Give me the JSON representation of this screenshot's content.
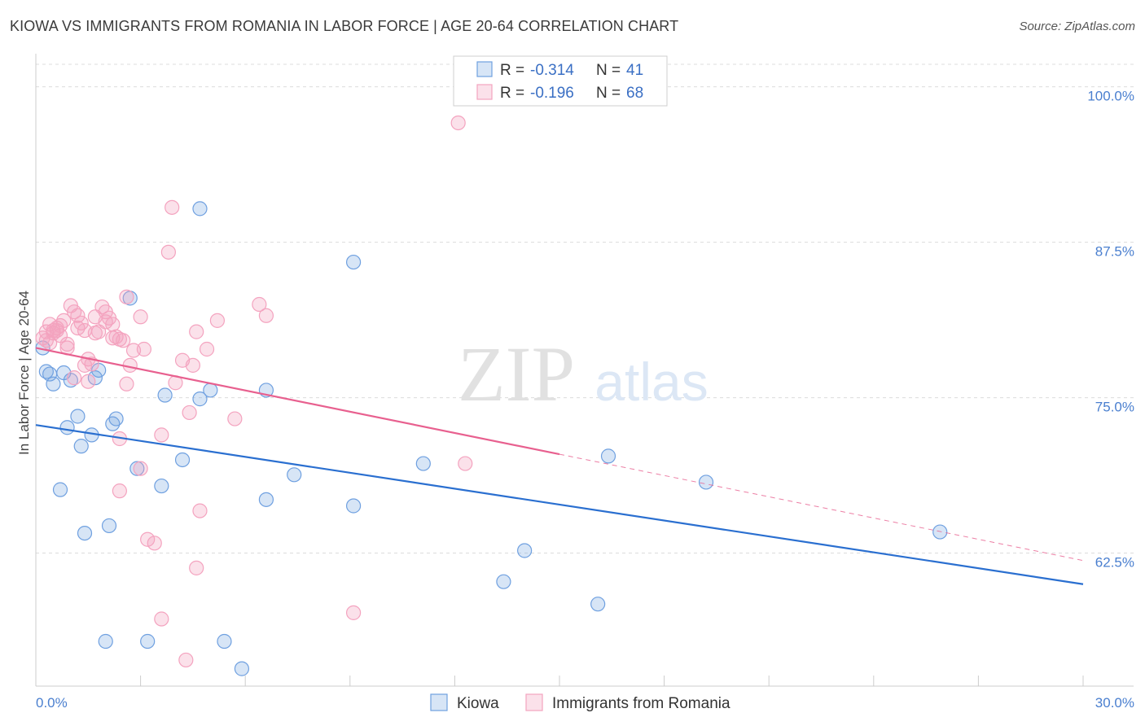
{
  "title": "KIOWA VS IMMIGRANTS FROM ROMANIA IN LABOR FORCE | AGE 20-64 CORRELATION CHART",
  "source": "Source: ZipAtlas.com",
  "watermark": {
    "zip": "ZIP",
    "atlas": "atlas"
  },
  "chart_data": {
    "type": "scatter",
    "title": "KIOWA VS IMMIGRANTS FROM ROMANIA IN LABOR FORCE | AGE 20-64 CORRELATION CHART",
    "xlabel": "",
    "ylabel": "In Labor Force | Age 20-64",
    "xlim": [
      0,
      30
    ],
    "ylim": [
      51.8,
      102.4
    ],
    "x_tick_labels": [
      "0.0%",
      "30.0%"
    ],
    "y_ticks": [
      62.5,
      75.0,
      87.5,
      100.0
    ],
    "y_tick_labels": [
      "62.5%",
      "75.0%",
      "87.5%",
      "100.0%"
    ],
    "grid": true,
    "legend_placement": "top-center",
    "series": [
      {
        "name": "Kiowa",
        "color": "#6fa0e0",
        "line_color": "#2a6fd0",
        "R": "-0.314",
        "N": "41",
        "trend": {
          "x0": 0.0,
          "y0": 72.8,
          "x1": 30.0,
          "y1": 60.0,
          "dashed_from": null
        },
        "points": [
          [
            0.2,
            79.0
          ],
          [
            0.3,
            77.1
          ],
          [
            0.4,
            76.9
          ],
          [
            0.5,
            76.1
          ],
          [
            0.7,
            67.6
          ],
          [
            0.8,
            77.0
          ],
          [
            0.9,
            72.6
          ],
          [
            1.0,
            76.4
          ],
          [
            1.2,
            73.5
          ],
          [
            1.3,
            71.1
          ],
          [
            1.4,
            64.1
          ],
          [
            1.6,
            72.0
          ],
          [
            1.7,
            76.6
          ],
          [
            1.8,
            77.2
          ],
          [
            2.0,
            55.4
          ],
          [
            2.1,
            64.7
          ],
          [
            2.2,
            72.9
          ],
          [
            2.3,
            73.3
          ],
          [
            2.7,
            83.0
          ],
          [
            2.9,
            69.3
          ],
          [
            3.2,
            55.4
          ],
          [
            3.6,
            67.9
          ],
          [
            3.7,
            75.2
          ],
          [
            4.2,
            70.0
          ],
          [
            4.7,
            74.9
          ],
          [
            4.7,
            90.2
          ],
          [
            5.0,
            75.6
          ],
          [
            5.4,
            55.4
          ],
          [
            5.9,
            53.2
          ],
          [
            6.6,
            75.6
          ],
          [
            6.6,
            66.8
          ],
          [
            7.4,
            68.8
          ],
          [
            9.1,
            66.3
          ],
          [
            9.1,
            85.9
          ],
          [
            11.1,
            69.7
          ],
          [
            13.4,
            60.2
          ],
          [
            14.0,
            62.7
          ],
          [
            16.1,
            58.4
          ],
          [
            16.4,
            70.3
          ],
          [
            19.2,
            68.2
          ],
          [
            25.9,
            64.2
          ]
        ]
      },
      {
        "name": "Immigrants from Romania",
        "color": "#f4a3bf",
        "line_color": "#e8608f",
        "R": "-0.196",
        "N": "68",
        "trend": {
          "x0": 0.0,
          "y0": 79.0,
          "x1": 30.0,
          "y1": 61.9,
          "dashed_from": 15.0
        },
        "points": [
          [
            0.2,
            79.8
          ],
          [
            0.3,
            80.3
          ],
          [
            0.3,
            79.6
          ],
          [
            0.4,
            80.9
          ],
          [
            0.5,
            80.4
          ],
          [
            0.5,
            80.2
          ],
          [
            0.6,
            80.6
          ],
          [
            0.6,
            80.4
          ],
          [
            0.7,
            80.0
          ],
          [
            0.7,
            80.8
          ],
          [
            0.8,
            81.2
          ],
          [
            0.9,
            79.3
          ],
          [
            0.9,
            79.0
          ],
          [
            1.0,
            82.4
          ],
          [
            1.1,
            81.9
          ],
          [
            1.1,
            76.6
          ],
          [
            1.2,
            80.6
          ],
          [
            1.2,
            81.6
          ],
          [
            1.3,
            81.0
          ],
          [
            1.4,
            77.6
          ],
          [
            1.4,
            80.4
          ],
          [
            1.5,
            76.3
          ],
          [
            1.5,
            78.1
          ],
          [
            1.6,
            77.7
          ],
          [
            1.7,
            80.2
          ],
          [
            1.7,
            81.5
          ],
          [
            1.8,
            80.3
          ],
          [
            1.9,
            82.3
          ],
          [
            2.0,
            81.1
          ],
          [
            2.0,
            81.9
          ],
          [
            2.1,
            81.4
          ],
          [
            2.2,
            80.9
          ],
          [
            2.2,
            79.8
          ],
          [
            2.3,
            79.9
          ],
          [
            2.4,
            79.7
          ],
          [
            2.4,
            71.7
          ],
          [
            2.4,
            67.5
          ],
          [
            2.5,
            79.6
          ],
          [
            2.6,
            76.1
          ],
          [
            2.6,
            83.1
          ],
          [
            2.7,
            77.6
          ],
          [
            2.8,
            78.8
          ],
          [
            3.0,
            69.3
          ],
          [
            3.0,
            81.5
          ],
          [
            3.1,
            78.9
          ],
          [
            3.2,
            63.6
          ],
          [
            3.4,
            63.3
          ],
          [
            3.6,
            57.2
          ],
          [
            3.6,
            72.0
          ],
          [
            3.8,
            86.7
          ],
          [
            3.9,
            90.3
          ],
          [
            4.0,
            76.2
          ],
          [
            4.2,
            78.0
          ],
          [
            4.3,
            53.9
          ],
          [
            4.4,
            73.8
          ],
          [
            4.5,
            77.6
          ],
          [
            4.6,
            80.3
          ],
          [
            4.6,
            61.3
          ],
          [
            4.7,
            65.9
          ],
          [
            4.9,
            78.9
          ],
          [
            5.2,
            81.2
          ],
          [
            5.7,
            73.3
          ],
          [
            6.4,
            82.5
          ],
          [
            6.6,
            81.6
          ],
          [
            9.1,
            57.7
          ],
          [
            12.1,
            97.1
          ],
          [
            12.3,
            69.7
          ],
          [
            0.4,
            79.4
          ]
        ]
      }
    ]
  }
}
